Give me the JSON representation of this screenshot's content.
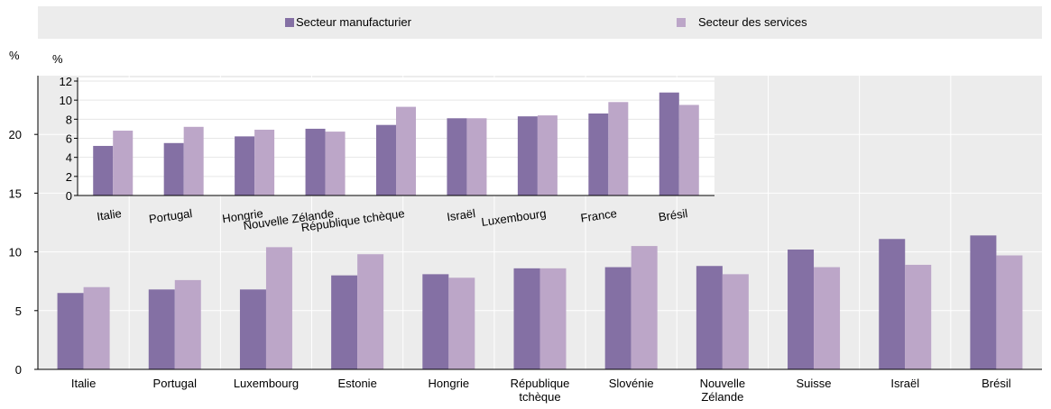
{
  "colors": {
    "manufacturing": "#8470a4",
    "services": "#bca6c8",
    "grid": "#ffffff",
    "band": "#ececec",
    "axis": "#000000"
  },
  "legend": {
    "manufacturing": "Secteur manufacturier",
    "services": "Secteur des services"
  },
  "chart_data": [
    {
      "type": "bar",
      "ylabel": "%",
      "ylim": [
        0,
        25
      ],
      "yticks": [
        0,
        5,
        10,
        15,
        20
      ],
      "grid": true,
      "categories": [
        "Italie",
        "Portugal",
        "Luxembourg",
        "Estonie",
        "Hongrie",
        "République tchèque",
        "Slovénie",
        "Nouvelle Zélande",
        "Suisse",
        "Israël",
        "Brésil"
      ],
      "category_lines": [
        [
          "Italie"
        ],
        [
          "Portugal"
        ],
        [
          "Luxembourg"
        ],
        [
          "Estonie"
        ],
        [
          "Hongrie"
        ],
        [
          "République",
          "tchèque"
        ],
        [
          "Slovénie"
        ],
        [
          "Nouvelle",
          "Zélande"
        ],
        [
          "Suisse"
        ],
        [
          "Israël"
        ],
        [
          "Brésil"
        ]
      ],
      "series": [
        {
          "name": "Secteur manufacturier",
          "values": [
            6.5,
            6.8,
            6.8,
            8.0,
            8.1,
            8.6,
            8.7,
            8.8,
            10.2,
            11.1,
            11.4
          ]
        },
        {
          "name": "Secteur des services",
          "values": [
            7.0,
            7.6,
            10.4,
            9.8,
            7.8,
            8.6,
            10.5,
            8.1,
            8.7,
            8.9,
            9.7
          ]
        }
      ]
    },
    {
      "type": "bar",
      "ylabel": "%",
      "ylim": [
        0,
        12
      ],
      "yticks": [
        0,
        2,
        4,
        6,
        8,
        10,
        12
      ],
      "grid": true,
      "categories": [
        "Italie",
        "Portugal",
        "Hongrie",
        "Nouvelle Zélande",
        "République tchèque",
        "Israël",
        "Luxembourg",
        "France",
        "Brésil"
      ],
      "series": [
        {
          "name": "Secteur manufacturier",
          "values": [
            5.2,
            5.5,
            6.2,
            7.0,
            7.4,
            8.1,
            8.3,
            8.6,
            10.8
          ]
        },
        {
          "name": "Secteur des services",
          "values": [
            6.8,
            7.2,
            6.9,
            6.7,
            9.3,
            8.1,
            8.4,
            9.8,
            9.5
          ]
        }
      ]
    }
  ]
}
